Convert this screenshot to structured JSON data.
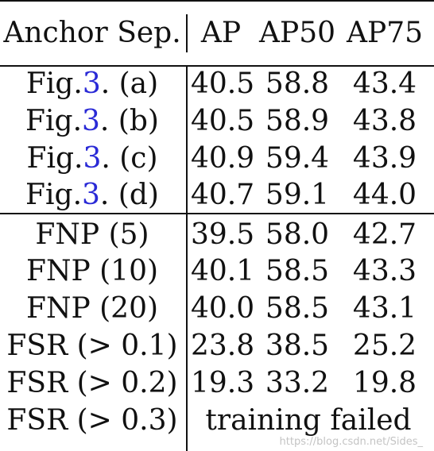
{
  "table": {
    "headers": [
      "Anchor Sep.",
      "AP",
      "AP50",
      "AP75"
    ],
    "rows_group1": [
      {
        "prefix": "Fig.",
        "ref": "3",
        "suffix": ". (a)",
        "ap": "40.5",
        "ap50": "58.8",
        "ap75": "43.4"
      },
      {
        "prefix": "Fig.",
        "ref": "3",
        "suffix": ". (b)",
        "ap": "40.5",
        "ap50": "58.9",
        "ap75": "43.8"
      },
      {
        "prefix": "Fig.",
        "ref": "3",
        "suffix": ". (c)",
        "ap": "40.9",
        "ap50": "59.4",
        "ap75": "43.9"
      },
      {
        "prefix": "Fig.",
        "ref": "3",
        "suffix": ". (d)",
        "ap": "40.7",
        "ap50": "59.1",
        "ap75": "44.0"
      }
    ],
    "rows_group2": [
      {
        "label": "FNP (5)",
        "ap": "39.5",
        "ap50": "58.0",
        "ap75": "42.7"
      },
      {
        "label": "FNP (10)",
        "ap": "40.1",
        "ap50": "58.5",
        "ap75": "43.3"
      },
      {
        "label": "FNP (20)",
        "ap": "40.0",
        "ap50": "58.5",
        "ap75": "43.1"
      },
      {
        "label": "FSR (> 0.1)",
        "ap": "23.8",
        "ap50": "38.5",
        "ap75": "25.2"
      },
      {
        "label": "FSR (> 0.2)",
        "ap": "19.3",
        "ap50": "33.2",
        "ap75": "19.8"
      }
    ],
    "failed_row": {
      "label": "FSR (> 0.3)",
      "text": "training failed"
    }
  },
  "watermark": "https://blog.csdn.net/Sides_"
}
